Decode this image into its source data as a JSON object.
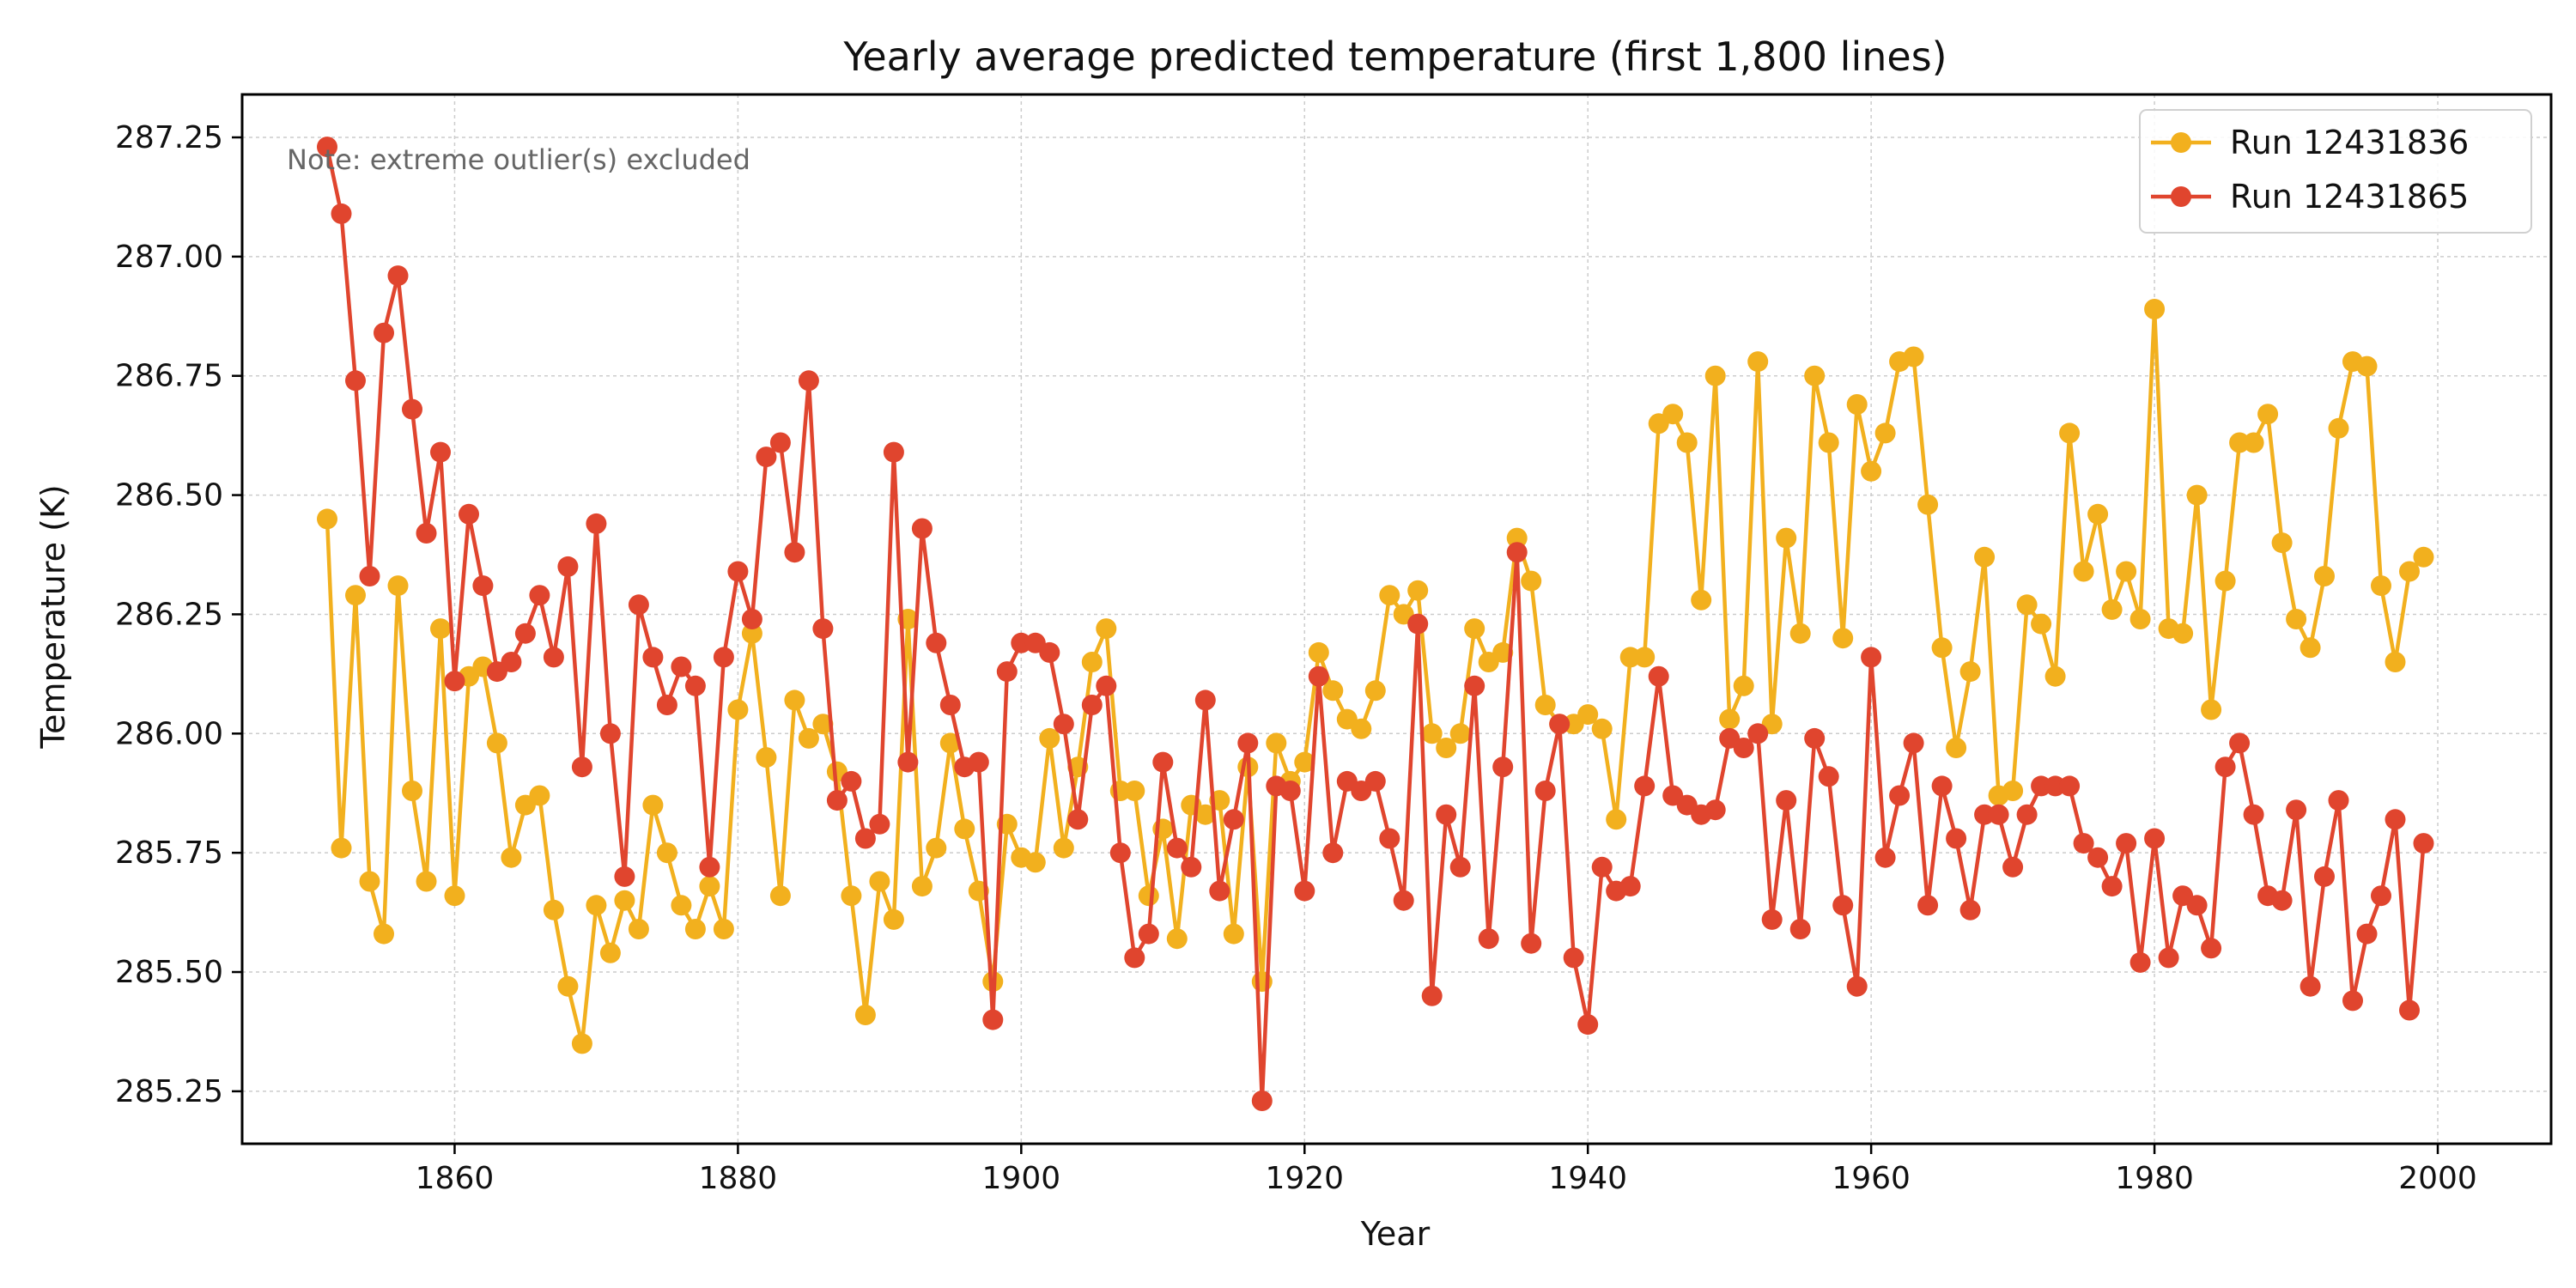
{
  "chart_data": {
    "type": "line",
    "title": "Yearly average predicted temperature (first 1,800 lines)",
    "xlabel": "Year",
    "ylabel": "Temperature (K)",
    "note": "Note: extreme outlier(s) excluded",
    "xlim": [
      1845,
      2008
    ],
    "ylim": [
      285.14,
      287.34
    ],
    "x_ticks": [
      1860,
      1880,
      1900,
      1920,
      1940,
      1960,
      1980,
      2000
    ],
    "x_tick_labels": [
      "1860",
      "1880",
      "1900",
      "1920",
      "1940",
      "1960",
      "1980",
      "2000"
    ],
    "y_ticks": [
      285.25,
      285.5,
      285.75,
      286.0,
      286.25,
      286.5,
      286.75,
      287.0,
      287.25
    ],
    "y_tick_labels": [
      "285.25",
      "285.50",
      "285.75",
      "286.00",
      "286.25",
      "286.50",
      "286.75",
      "287.00",
      "287.25"
    ],
    "grid": true,
    "legend_position": "top-right",
    "x": [
      1851,
      1852,
      1853,
      1854,
      1855,
      1856,
      1857,
      1858,
      1859,
      1860,
      1861,
      1862,
      1863,
      1864,
      1865,
      1866,
      1867,
      1868,
      1869,
      1870,
      1871,
      1872,
      1873,
      1874,
      1875,
      1876,
      1877,
      1878,
      1879,
      1880,
      1881,
      1882,
      1883,
      1884,
      1885,
      1886,
      1887,
      1888,
      1889,
      1890,
      1891,
      1892,
      1893,
      1894,
      1895,
      1896,
      1897,
      1898,
      1899,
      1900,
      1901,
      1902,
      1903,
      1904,
      1905,
      1906,
      1907,
      1908,
      1909,
      1910,
      1911,
      1912,
      1913,
      1914,
      1915,
      1916,
      1917,
      1918,
      1919,
      1920,
      1921,
      1922,
      1923,
      1924,
      1925,
      1926,
      1927,
      1928,
      1929,
      1930,
      1931,
      1932,
      1933,
      1934,
      1935,
      1936,
      1937,
      1938,
      1939,
      1940,
      1941,
      1942,
      1943,
      1944,
      1945,
      1946,
      1947,
      1948,
      1949,
      1950,
      1951,
      1952,
      1953,
      1954,
      1955,
      1956,
      1957,
      1958,
      1959,
      1960,
      1961,
      1962,
      1963,
      1964,
      1965,
      1966,
      1967,
      1968,
      1969,
      1970,
      1971,
      1972,
      1973,
      1974,
      1975,
      1976,
      1977,
      1978,
      1979,
      1980,
      1981,
      1982,
      1983,
      1984,
      1985,
      1986,
      1987,
      1988,
      1989,
      1990,
      1991,
      1992,
      1993,
      1994,
      1995,
      1996,
      1997,
      1998,
      1999
    ],
    "series": [
      {
        "name": "Run 12431836",
        "color": "#f2b01e",
        "values": [
          286.45,
          285.76,
          286.29,
          285.69,
          285.58,
          286.31,
          285.88,
          285.69,
          286.22,
          285.66,
          286.12,
          286.14,
          285.98,
          285.74,
          285.85,
          285.87,
          285.63,
          285.47,
          285.35,
          285.64,
          285.54,
          285.65,
          285.59,
          285.85,
          285.75,
          285.64,
          285.59,
          285.68,
          285.59,
          286.05,
          286.21,
          285.95,
          285.66,
          286.07,
          285.99,
          286.02,
          285.92,
          285.66,
          285.41,
          285.69,
          285.61,
          286.24,
          285.68,
          285.76,
          285.98,
          285.8,
          285.67,
          285.48,
          285.81,
          285.74,
          285.73,
          285.99,
          285.76,
          285.93,
          286.15,
          286.22,
          285.88,
          285.88,
          285.66,
          285.8,
          285.57,
          285.85,
          285.83,
          285.86,
          285.58,
          285.93,
          285.48,
          285.98,
          285.9,
          285.94,
          286.17,
          286.09,
          286.03,
          286.01,
          286.09,
          286.29,
          286.25,
          286.3,
          286.0,
          285.97,
          286.0,
          286.22,
          286.15,
          286.17,
          286.41,
          286.32,
          286.06,
          286.02,
          286.02,
          286.04,
          286.01,
          285.82,
          286.16,
          286.16,
          286.65,
          286.67,
          286.61,
          286.28,
          286.75,
          286.03,
          286.1,
          286.78,
          286.02,
          286.41,
          286.21,
          286.75,
          286.61,
          286.2,
          286.69,
          286.55,
          286.63,
          286.78,
          286.79,
          286.48,
          286.18,
          285.97,
          286.13,
          286.37,
          285.87,
          285.88,
          286.27,
          286.23,
          286.12,
          286.63,
          286.34,
          286.46,
          286.26,
          286.34,
          286.24,
          286.89,
          286.22,
          286.21,
          286.5,
          286.05,
          286.32,
          286.61,
          286.61,
          286.67,
          286.4,
          286.24,
          286.18,
          286.33,
          286.64,
          286.78,
          286.77,
          286.31,
          286.15,
          286.34,
          286.37
        ]
      },
      {
        "name": "Run 12431865",
        "color": "#e0452e",
        "values": [
          287.23,
          287.09,
          286.74,
          286.33,
          286.84,
          286.96,
          286.68,
          286.42,
          286.59,
          286.11,
          286.46,
          286.31,
          286.13,
          286.15,
          286.21,
          286.29,
          286.16,
          286.35,
          285.93,
          286.44,
          286.0,
          285.7,
          286.27,
          286.16,
          286.06,
          286.14,
          286.1,
          285.72,
          286.16,
          286.34,
          286.24,
          286.58,
          286.61,
          286.38,
          286.74,
          286.22,
          285.86,
          285.9,
          285.78,
          285.81,
          286.59,
          285.94,
          286.43,
          286.19,
          286.06,
          285.93,
          285.94,
          285.4,
          286.13,
          286.19,
          286.19,
          286.17,
          286.02,
          285.82,
          286.06,
          286.1,
          285.75,
          285.53,
          285.58,
          285.94,
          285.76,
          285.72,
          286.07,
          285.67,
          285.82,
          285.98,
          285.23,
          285.89,
          285.88,
          285.67,
          286.12,
          285.75,
          285.9,
          285.88,
          285.9,
          285.78,
          285.65,
          286.23,
          285.45,
          285.83,
          285.72,
          286.1,
          285.57,
          285.93,
          286.38,
          285.56,
          285.88,
          286.02,
          285.53,
          285.39,
          285.72,
          285.67,
          285.68,
          285.89,
          286.12,
          285.87,
          285.85,
          285.83,
          285.84,
          285.99,
          285.97,
          286.0,
          285.61,
          285.86,
          285.59,
          285.99,
          285.91,
          285.64,
          285.47,
          286.16,
          285.74,
          285.87,
          285.98,
          285.64,
          285.89,
          285.78,
          285.63,
          285.83,
          285.83,
          285.72,
          285.83,
          285.89,
          285.89,
          285.89,
          285.77,
          285.74,
          285.68,
          285.77,
          285.52,
          285.78,
          285.53,
          285.66,
          285.64,
          285.55,
          285.93,
          285.98,
          285.83,
          285.66,
          285.65,
          285.84,
          285.47,
          285.7,
          285.86,
          285.44,
          285.58,
          285.66,
          285.82,
          285.42,
          285.77
        ]
      }
    ]
  }
}
